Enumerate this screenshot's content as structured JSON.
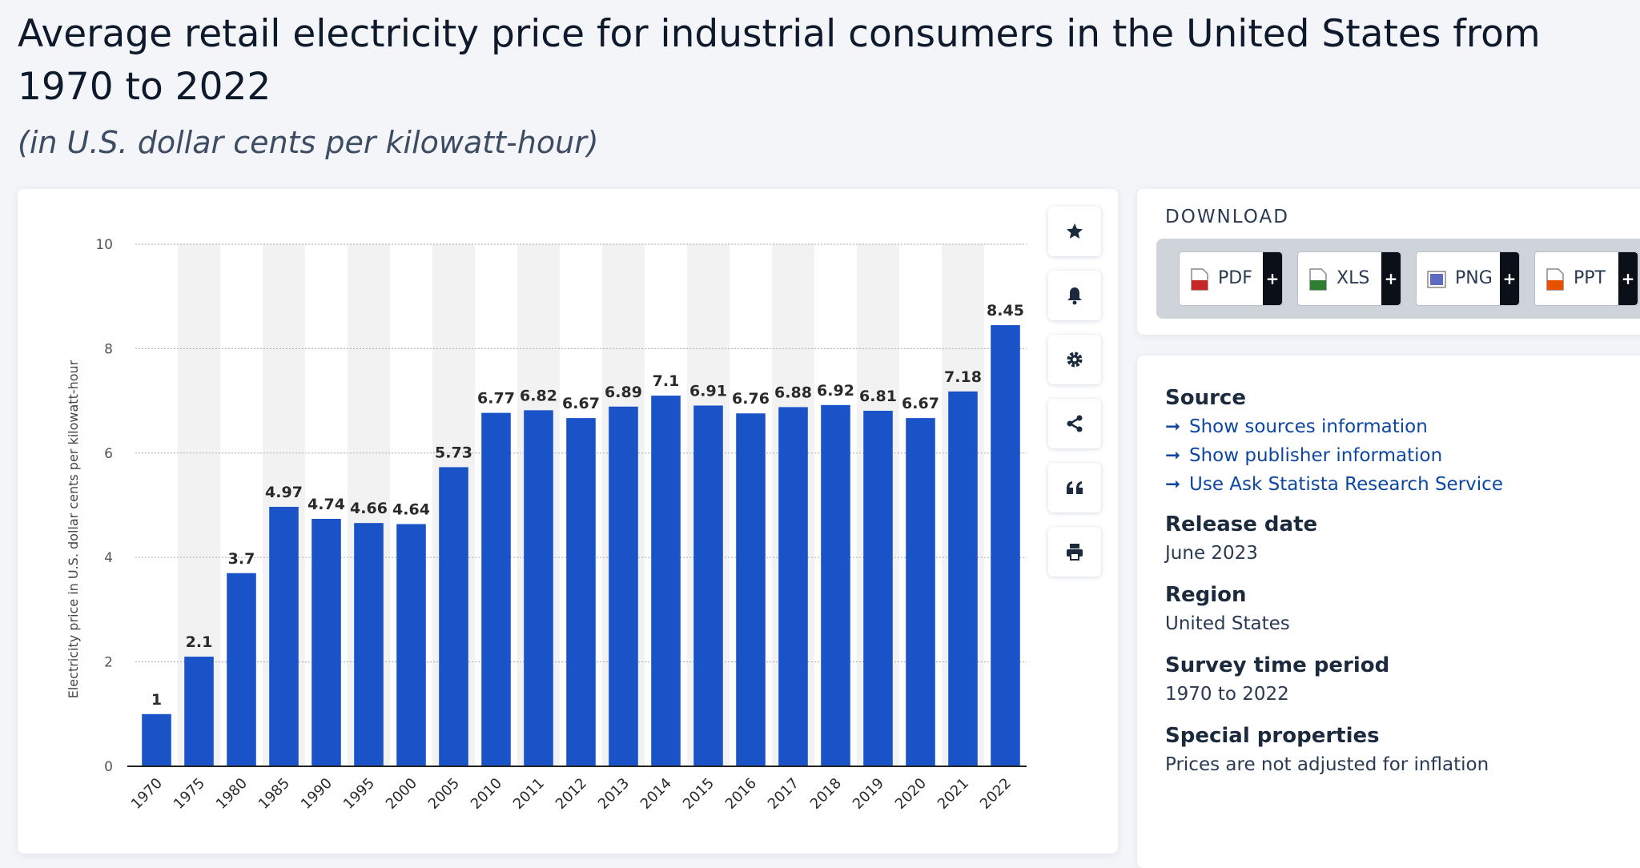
{
  "header": {
    "title": "Average retail electricity price for industrial consumers in the United States from 1970 to 2022",
    "subtitle": "(in U.S. dollar cents per kilowatt-hour)"
  },
  "colors": {
    "bar": "#1a53c8",
    "band": "#f2f2f2",
    "grid": "#b7b7b7"
  },
  "toolbar": {
    "buttons": [
      {
        "name": "favorite-button",
        "icon": "star-icon"
      },
      {
        "name": "notification-button",
        "icon": "bell-icon"
      },
      {
        "name": "settings-button",
        "icon": "gear-icon"
      },
      {
        "name": "share-button",
        "icon": "share-icon"
      },
      {
        "name": "cite-button",
        "icon": "quote-icon"
      },
      {
        "name": "print-button",
        "icon": "printer-icon"
      }
    ]
  },
  "download": {
    "title": "DOWNLOAD",
    "buttons": [
      {
        "label": "PDF",
        "plus": "+",
        "icon": "pdf-file-icon",
        "color": "#c62828"
      },
      {
        "label": "XLS",
        "plus": "+",
        "icon": "xls-file-icon",
        "color": "#2e7d32"
      },
      {
        "label": "PNG",
        "plus": "+",
        "icon": "png-file-icon",
        "color": "#5c6bc0"
      },
      {
        "label": "PPT",
        "plus": "+",
        "icon": "ppt-file-icon",
        "color": "#e65100"
      }
    ]
  },
  "info": {
    "source_heading": "Source",
    "links": [
      {
        "label": "Show sources information"
      },
      {
        "label": "Show publisher information"
      },
      {
        "label": "Use Ask Statista Research Service"
      }
    ],
    "release_heading": "Release date",
    "release_value": "June 2023",
    "region_heading": "Region",
    "region_value": "United States",
    "period_heading": "Survey time period",
    "period_value": "1970 to 2022",
    "special_heading": "Special properties",
    "special_value": "Prices are not adjusted for inflation"
  },
  "chart_data": {
    "type": "bar",
    "ylabel": "Electricity price in U.S. dollar cents per kilowatt-hour",
    "xlabel": "",
    "ylim": [
      0,
      10
    ],
    "yticks": [
      0,
      2,
      4,
      6,
      8,
      10
    ],
    "grid": true,
    "categories": [
      "1970",
      "1975",
      "1980",
      "1985",
      "1990",
      "1995",
      "2000",
      "2005",
      "2010",
      "2011",
      "2012",
      "2013",
      "2014",
      "2015",
      "2016",
      "2017",
      "2018",
      "2019",
      "2020",
      "2021",
      "2022"
    ],
    "values": [
      1,
      2.1,
      3.7,
      4.97,
      4.74,
      4.66,
      4.64,
      5.73,
      6.77,
      6.82,
      6.67,
      6.89,
      7.1,
      6.91,
      6.76,
      6.88,
      6.92,
      6.81,
      6.67,
      7.18,
      8.45
    ],
    "value_labels": [
      "1",
      "2.1",
      "3.7",
      "4.97",
      "4.74",
      "4.66",
      "4.64",
      "5.73",
      "6.77",
      "6.82",
      "6.67",
      "6.89",
      "7.1",
      "6.91",
      "6.76",
      "6.88",
      "6.92",
      "6.81",
      "6.67",
      "7.18",
      "8.45"
    ]
  }
}
